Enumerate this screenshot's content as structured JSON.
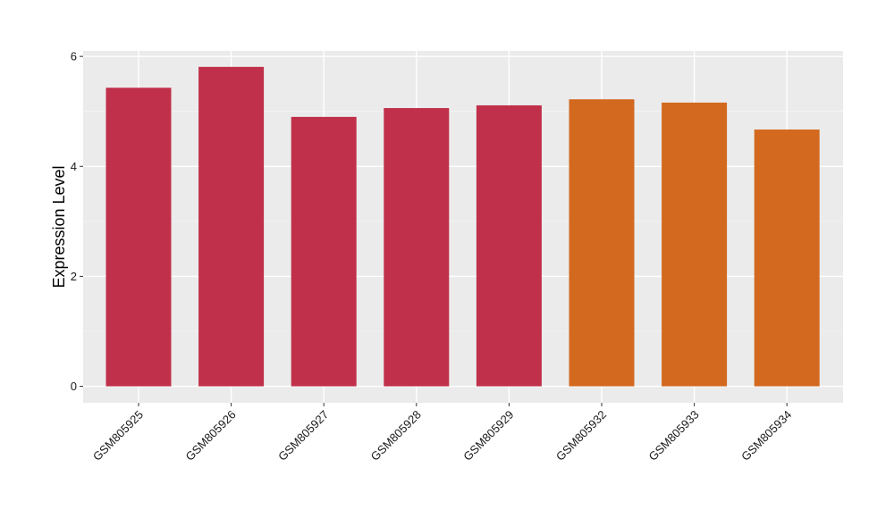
{
  "chart_data": {
    "type": "bar",
    "title": "",
    "xlabel": "",
    "ylabel": "Expression Level",
    "categories": [
      "GSM805925",
      "GSM805926",
      "GSM805927",
      "GSM805928",
      "GSM805929",
      "GSM805932",
      "GSM805933",
      "GSM805934"
    ],
    "values": [
      5.43,
      5.81,
      4.9,
      5.06,
      5.11,
      5.22,
      5.16,
      4.67
    ],
    "bar_colors": [
      "#c0304a",
      "#c0304a",
      "#c0304a",
      "#c0304a",
      "#c0304a",
      "#d2691e",
      "#d2691e",
      "#d2691e"
    ],
    "y_ticks": [
      0,
      2,
      4,
      6
    ],
    "ylim": [
      -0.3,
      6.1
    ],
    "grid": true,
    "legend": "none"
  }
}
